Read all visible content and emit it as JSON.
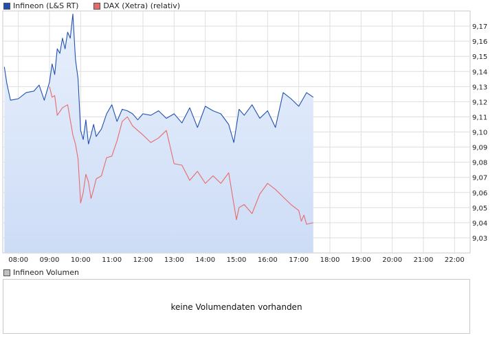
{
  "legend": [
    {
      "label": "Infineon (L&S RT)",
      "color": "#1f4fb0"
    },
    {
      "label": "DAX (Xetra) (relativ)",
      "color": "#e86a6a"
    }
  ],
  "volume": {
    "legend_label": "Infineon Volumen",
    "legend_color": "#c0c0c0",
    "message": "keine Volumendaten vorhanden"
  },
  "chart_data": {
    "type": "line",
    "title": "",
    "xlabel": "",
    "ylabel": "",
    "x_ticks": [
      "08:00",
      "09:00",
      "10:00",
      "11:00",
      "12:00",
      "13:00",
      "14:00",
      "15:00",
      "16:00",
      "17:00",
      "18:00",
      "19:00",
      "20:00",
      "21:00",
      "22:00"
    ],
    "y_ticks": [
      "9,03",
      "9,04",
      "9,05",
      "9,06",
      "9,07",
      "9,08",
      "9,09",
      "9,10",
      "9,11",
      "9,12",
      "9,13",
      "9,14",
      "9,15",
      "9,16",
      "9,17"
    ],
    "xlim": [
      "07:30",
      "22:30"
    ],
    "ylim": [
      9.02,
      9.18
    ],
    "grid": true,
    "y_axis_position": "right",
    "legend_position": "top-left",
    "series": [
      {
        "name": "Infineon (L&S RT)",
        "color": "#1f4fb0",
        "fill": "#dbe7fb",
        "x": [
          "07:33",
          "07:38",
          "07:45",
          "08:00",
          "08:15",
          "08:30",
          "08:40",
          "08:50",
          "09:00",
          "09:05",
          "09:10",
          "09:15",
          "09:20",
          "09:25",
          "09:30",
          "09:35",
          "09:40",
          "09:45",
          "09:50",
          "09:55",
          "10:00",
          "10:05",
          "10:10",
          "10:15",
          "10:20",
          "10:25",
          "10:30",
          "10:40",
          "10:50",
          "11:00",
          "11:10",
          "11:20",
          "11:30",
          "11:40",
          "11:50",
          "12:00",
          "12:15",
          "12:30",
          "12:45",
          "13:00",
          "13:15",
          "13:30",
          "13:45",
          "14:00",
          "14:15",
          "14:30",
          "14:45",
          "14:55",
          "15:00",
          "15:05",
          "15:15",
          "15:30",
          "15:45",
          "16:00",
          "16:15",
          "16:30",
          "16:45",
          "17:00",
          "17:15",
          "17:28"
        ],
        "y": [
          9.143,
          9.132,
          9.121,
          9.122,
          9.126,
          9.127,
          9.131,
          9.121,
          9.133,
          9.145,
          9.138,
          9.155,
          9.152,
          9.162,
          9.155,
          9.166,
          9.162,
          9.178,
          9.148,
          9.135,
          9.101,
          9.095,
          9.108,
          9.092,
          9.098,
          9.105,
          9.097,
          9.102,
          9.112,
          9.118,
          9.107,
          9.115,
          9.114,
          9.112,
          9.108,
          9.112,
          9.111,
          9.114,
          9.109,
          9.112,
          9.106,
          9.116,
          9.103,
          9.117,
          9.114,
          9.112,
          9.105,
          9.093,
          9.104,
          9.115,
          9.111,
          9.118,
          9.109,
          9.114,
          9.103,
          9.126,
          9.122,
          9.117,
          9.126,
          9.123
        ]
      },
      {
        "name": "DAX (Xetra) (relativ)",
        "color": "#e86a6a",
        "x": [
          "09:00",
          "09:05",
          "09:10",
          "09:15",
          "09:25",
          "09:35",
          "09:45",
          "09:50",
          "09:55",
          "10:00",
          "10:05",
          "10:10",
          "10:15",
          "10:20",
          "10:25",
          "10:30",
          "10:40",
          "10:50",
          "11:00",
          "11:10",
          "11:20",
          "11:30",
          "11:40",
          "11:50",
          "12:00",
          "12:15",
          "12:30",
          "12:45",
          "13:00",
          "13:15",
          "13:30",
          "13:45",
          "14:00",
          "14:15",
          "14:30",
          "14:45",
          "15:00",
          "15:05",
          "15:15",
          "15:30",
          "15:45",
          "16:00",
          "16:15",
          "16:30",
          "16:45",
          "17:00",
          "17:05",
          "17:10",
          "17:15",
          "17:28"
        ],
        "y": [
          9.13,
          9.123,
          9.124,
          9.111,
          9.116,
          9.118,
          9.098,
          9.092,
          9.082,
          9.053,
          9.06,
          9.072,
          9.067,
          9.056,
          9.062,
          9.069,
          9.071,
          9.083,
          9.084,
          9.094,
          9.107,
          9.11,
          9.104,
          9.101,
          9.098,
          9.093,
          9.096,
          9.101,
          9.079,
          9.078,
          9.068,
          9.074,
          9.066,
          9.071,
          9.066,
          9.073,
          9.042,
          9.05,
          9.052,
          9.046,
          9.059,
          9.066,
          9.062,
          9.057,
          9.052,
          9.048,
          9.041,
          9.045,
          9.039,
          9.04
        ]
      }
    ]
  }
}
